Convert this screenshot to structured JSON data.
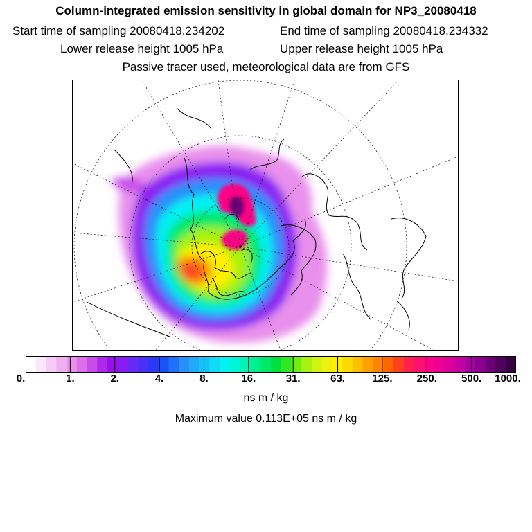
{
  "header": {
    "title": "Column-integrated emission sensitivity in global domain for NP3_20080418",
    "start_time": "Start time of sampling 20080418.234202",
    "end_time": "End time of sampling 20080418.234332",
    "lower_release": "Lower release height 1005 hPa",
    "upper_release": "Upper release height 1005 hPa",
    "tracer_note": "Passive tracer used, meteorological data are from GFS"
  },
  "colorbar": {
    "tick_labels": [
      "0.",
      "1.",
      "2.",
      "4.",
      "8.",
      "16.",
      "31.",
      "63.",
      "125.",
      "250.",
      "500.",
      "1000."
    ],
    "unit": "ns m / kg",
    "colors": [
      "#ffffff",
      "#fbe6fb",
      "#f6ccf6",
      "#f0b0f0",
      "#e890ec",
      "#dc70ea",
      "#c84cea",
      "#b028ea",
      "#9810ee",
      "#8a1cf2",
      "#6a28f4",
      "#4a30f6",
      "#2c38f8",
      "#1a52f8",
      "#2070fa",
      "#2890fa",
      "#20aafa",
      "#18c2f8",
      "#10dcf6",
      "#00f2f2",
      "#00f4d6",
      "#00f4b6",
      "#00f090",
      "#00e868",
      "#00e040",
      "#30e820",
      "#70ee10",
      "#a8f210",
      "#d0f410",
      "#eef010",
      "#fff000",
      "#ffd800",
      "#ffbe00",
      "#ffa000",
      "#ff8400",
      "#ff6600",
      "#ff4020",
      "#ff2050",
      "#ff1070",
      "#ff0088",
      "#ee0094",
      "#dc009c",
      "#c400a0",
      "#a800a0",
      "#8c0090",
      "#6c0078",
      "#4e005c",
      "#360040"
    ]
  },
  "max_value": "Maximum value  0.113E+05 ns m / kg"
}
